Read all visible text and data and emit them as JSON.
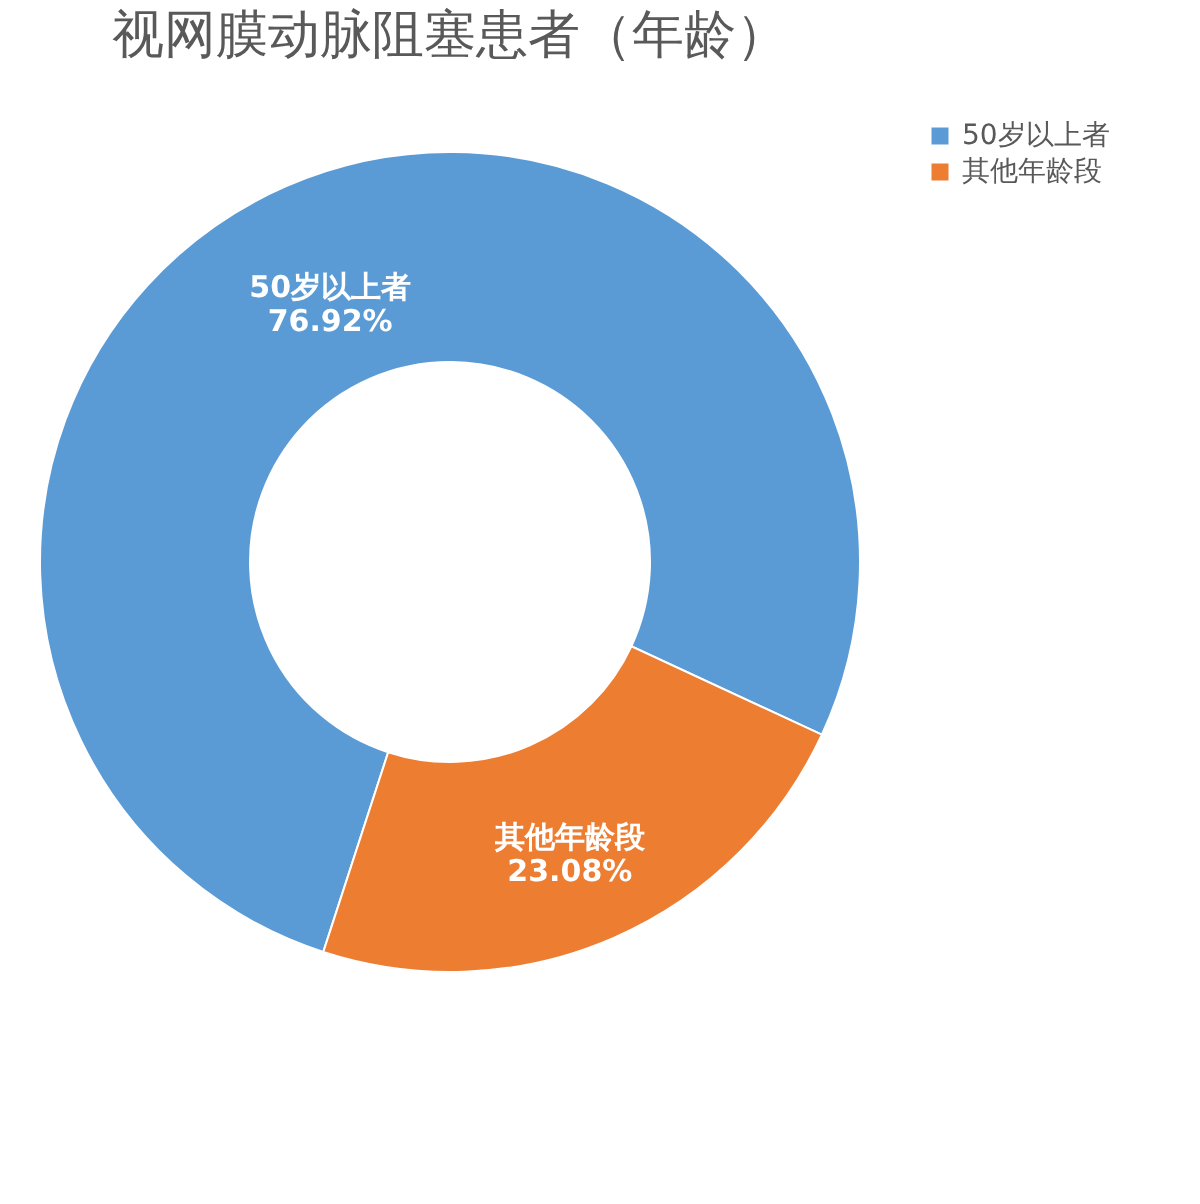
{
  "chart_data": {
    "type": "donut",
    "title": "视网膜动脉阻塞患者（年龄）",
    "categories": [
      "50岁以上者",
      "其他年龄段"
    ],
    "values": [
      76.92,
      23.08
    ],
    "colors": [
      "#5b9bd5",
      "#ed7d31"
    ],
    "value_labels": [
      "76.92%",
      "23.08%"
    ],
    "legend": "right"
  }
}
